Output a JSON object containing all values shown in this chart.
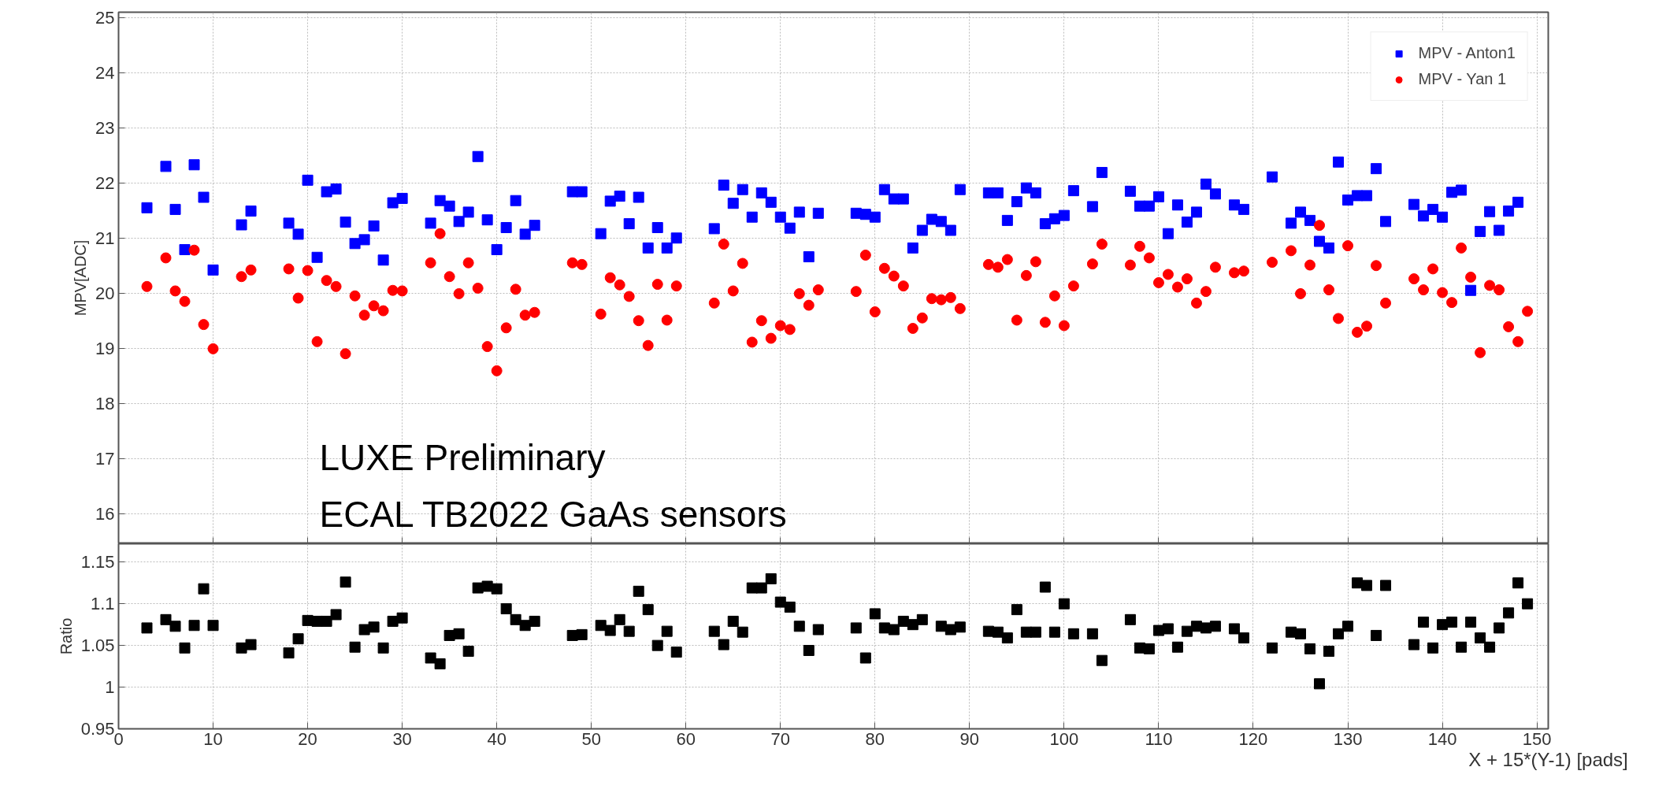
{
  "chart_data": [
    {
      "type": "scatter",
      "ylabel": "MPV[ADC]",
      "xlim": [
        0,
        151.2
      ],
      "ylim": [
        15.45,
        25.1
      ],
      "xticks": [
        0,
        10,
        20,
        30,
        40,
        50,
        60,
        70,
        80,
        90,
        100,
        110,
        120,
        130,
        140,
        150
      ],
      "yticks": [
        16,
        17,
        18,
        19,
        20,
        21,
        22,
        23,
        24,
        25
      ],
      "tick_labels": "y",
      "grid": true,
      "legend": "top right",
      "annotations": [
        "LUXE Preliminary",
        "ECAL TB2022 GaAs sensors"
      ],
      "series": [
        {
          "name": "MPV - Anton1",
          "color": "#0000ff",
          "marker": "square",
          "x": [
            3,
            5,
            6,
            7,
            8,
            9,
            10,
            13,
            14,
            18,
            19,
            20,
            21,
            22,
            23,
            24,
            25,
            26,
            27,
            28,
            29,
            30,
            33,
            34,
            35,
            36,
            37,
            38,
            39,
            40,
            41,
            42,
            43,
            44,
            48,
            49,
            51,
            52,
            53,
            54,
            55,
            56,
            57,
            58,
            59,
            63,
            64,
            65,
            66,
            67,
            68,
            69,
            70,
            71,
            72,
            73,
            74,
            78,
            79,
            80,
            81,
            82,
            83,
            84,
            85,
            86,
            87,
            88,
            89,
            92,
            93,
            94,
            95,
            96,
            97,
            98,
            99,
            100,
            101,
            103,
            104,
            107,
            108,
            109,
            110,
            111,
            112,
            113,
            114,
            115,
            116,
            118,
            119,
            122,
            124,
            125,
            126,
            127,
            128,
            129,
            130,
            131,
            132,
            133,
            134,
            137,
            138,
            139,
            140,
            141,
            142,
            143,
            144,
            145,
            146,
            147,
            148
          ],
          "values": [
            21.55,
            22.3,
            21.52,
            20.79,
            22.33,
            21.74,
            20.42,
            21.24,
            21.49,
            21.27,
            21.07,
            22.05,
            20.65,
            21.84,
            21.89,
            21.29,
            20.9,
            20.97,
            21.22,
            20.6,
            21.64,
            21.72,
            21.27,
            21.68,
            21.58,
            21.3,
            21.47,
            22.48,
            21.33,
            20.79,
            21.19,
            21.68,
            21.07,
            21.23,
            21.84,
            21.84,
            21.08,
            21.67,
            21.76,
            21.26,
            21.74,
            20.82,
            21.19,
            20.82,
            21.0,
            21.17,
            21.96,
            21.63,
            21.88,
            21.38,
            21.82,
            21.65,
            21.38,
            21.18,
            21.47,
            20.66,
            21.45,
            21.45,
            21.43,
            21.38,
            21.88,
            21.71,
            21.71,
            20.82,
            21.14,
            21.34,
            21.3,
            21.14,
            21.88,
            21.82,
            21.82,
            21.32,
            21.66,
            21.91,
            21.82,
            21.26,
            21.35,
            21.41,
            21.86,
            21.57,
            22.19,
            21.85,
            21.58,
            21.58,
            21.75,
            21.08,
            21.6,
            21.29,
            21.47,
            21.98,
            21.8,
            21.6,
            21.52,
            22.11,
            21.27,
            21.47,
            21.32,
            20.94,
            20.82,
            22.38,
            21.69,
            21.77,
            21.77,
            22.26,
            21.3,
            21.61,
            21.4,
            21.52,
            21.38,
            21.83,
            21.87,
            20.05,
            21.12,
            21.48,
            21.14,
            21.49,
            21.65
          ]
        },
        {
          "name": "MPV - Yan 1",
          "color": "#ff0000",
          "marker": "circle",
          "x": [
            3,
            5,
            6,
            7,
            8,
            9,
            10,
            13,
            14,
            18,
            19,
            20,
            21,
            22,
            23,
            24,
            25,
            26,
            27,
            28,
            29,
            30,
            33,
            34,
            35,
            36,
            37,
            38,
            39,
            40,
            41,
            42,
            43,
            44,
            48,
            49,
            51,
            52,
            53,
            54,
            55,
            56,
            57,
            58,
            59,
            63,
            64,
            65,
            66,
            67,
            68,
            69,
            70,
            71,
            72,
            73,
            74,
            78,
            79,
            80,
            81,
            82,
            83,
            84,
            85,
            86,
            87,
            88,
            89,
            92,
            93,
            94,
            95,
            96,
            97,
            98,
            99,
            100,
            101,
            103,
            104,
            107,
            108,
            109,
            110,
            111,
            112,
            113,
            114,
            115,
            116,
            118,
            119,
            122,
            124,
            125,
            126,
            127,
            128,
            129,
            130,
            131,
            132,
            133,
            134,
            137,
            138,
            139,
            140,
            141,
            142,
            143,
            144,
            145,
            146,
            147,
            148,
            149
          ],
          "values": [
            20.12,
            20.64,
            20.04,
            19.85,
            20.78,
            19.43,
            18.99,
            20.3,
            20.42,
            20.44,
            19.91,
            20.41,
            19.12,
            20.23,
            20.12,
            18.9,
            19.95,
            19.6,
            19.77,
            19.68,
            20.05,
            20.04,
            20.55,
            21.08,
            20.3,
            19.99,
            20.55,
            20.09,
            19.03,
            18.59,
            19.37,
            20.07,
            19.6,
            19.65,
            20.55,
            20.52,
            19.62,
            20.28,
            20.15,
            19.94,
            19.5,
            19.05,
            20.16,
            19.51,
            20.13,
            19.82,
            20.89,
            20.04,
            20.54,
            19.11,
            19.5,
            19.18,
            19.41,
            19.34,
            19.99,
            19.78,
            20.06,
            20.03,
            20.69,
            19.66,
            20.45,
            20.31,
            20.13,
            19.36,
            19.55,
            19.9,
            19.88,
            19.92,
            19.72,
            20.52,
            20.47,
            20.61,
            19.51,
            20.32,
            20.57,
            19.47,
            19.95,
            19.41,
            20.13,
            20.53,
            20.89,
            20.51,
            20.85,
            20.64,
            20.19,
            20.34,
            20.11,
            20.26,
            19.82,
            20.03,
            20.47,
            20.37,
            20.4,
            20.56,
            20.77,
            19.99,
            20.51,
            21.23,
            20.06,
            19.54,
            20.86,
            19.29,
            19.4,
            20.5,
            19.82,
            20.26,
            20.06,
            20.44,
            20.01,
            19.83,
            20.82,
            20.29,
            18.92,
            20.14,
            20.06,
            19.39,
            19.12,
            19.67
          ]
        }
      ]
    },
    {
      "type": "scatter",
      "ylabel": "Ratio",
      "xlabel": "X + 15*(Y-1) [pads]",
      "xlim": [
        0,
        151.2
      ],
      "ylim": [
        0.95,
        1.172
      ],
      "xticks": [
        0,
        10,
        20,
        30,
        40,
        50,
        60,
        70,
        80,
        90,
        100,
        110,
        120,
        130,
        140,
        150
      ],
      "yticks": [
        0.95,
        1,
        1.05,
        1.1,
        1.15
      ],
      "grid": true,
      "series": [
        {
          "color": "#000000",
          "marker": "square",
          "x": [
            3,
            5,
            6,
            7,
            8,
            9,
            10,
            13,
            14,
            18,
            19,
            20,
            21,
            22,
            23,
            24,
            25,
            26,
            27,
            28,
            29,
            30,
            33,
            34,
            35,
            36,
            37,
            38,
            39,
            40,
            41,
            42,
            43,
            44,
            48,
            49,
            51,
            52,
            53,
            54,
            55,
            56,
            57,
            58,
            59,
            63,
            64,
            65,
            66,
            67,
            68,
            69,
            70,
            71,
            72,
            73,
            74,
            78,
            79,
            80,
            81,
            82,
            83,
            84,
            85,
            87,
            88,
            89,
            92,
            93,
            94,
            95,
            96,
            97,
            98,
            99,
            100,
            101,
            103,
            104,
            107,
            108,
            109,
            110,
            111,
            112,
            113,
            114,
            115,
            116,
            118,
            119,
            122,
            124,
            125,
            126,
            127,
            128,
            129,
            130,
            131,
            132,
            133,
            134,
            137,
            138,
            139,
            140,
            141,
            142,
            143,
            144,
            145,
            146,
            147,
            148,
            149
          ],
          "values": [
            1.071,
            1.081,
            1.073,
            1.047,
            1.074,
            1.118,
            1.074,
            1.047,
            1.051,
            1.041,
            1.058,
            1.08,
            1.079,
            1.079,
            1.087,
            1.126,
            1.048,
            1.069,
            1.072,
            1.047,
            1.079,
            1.083,
            1.035,
            1.028,
            1.062,
            1.064,
            1.043,
            1.119,
            1.121,
            1.118,
            1.094,
            1.081,
            1.074,
            1.079,
            1.062,
            1.063,
            1.074,
            1.068,
            1.081,
            1.067,
            1.115,
            1.093,
            1.05,
            1.067,
            1.042,
            1.067,
            1.051,
            1.079,
            1.066,
            1.119,
            1.119,
            1.13,
            1.102,
            1.096,
            1.073,
            1.044,
            1.069,
            1.071,
            1.035,
            1.088,
            1.071,
            1.069,
            1.079,
            1.075,
            1.081,
            1.073,
            1.069,
            1.072,
            1.067,
            1.066,
            1.059,
            1.093,
            1.066,
            1.066,
            1.12,
            1.066,
            1.1,
            1.064,
            1.064,
            1.032,
            1.081,
            1.047,
            1.046,
            1.068,
            1.07,
            1.048,
            1.067,
            1.073,
            1.071,
            1.073,
            1.07,
            1.059,
            1.047,
            1.066,
            1.064,
            1.046,
            1.004,
            1.043,
            1.064,
            1.073,
            1.125,
            1.122,
            1.062,
            1.122,
            1.051,
            1.078,
            1.047,
            1.075,
            1.078,
            1.048,
            1.078,
            1.059,
            1.048,
            1.071,
            1.089,
            1.125,
            1.1
          ]
        }
      ]
    }
  ]
}
